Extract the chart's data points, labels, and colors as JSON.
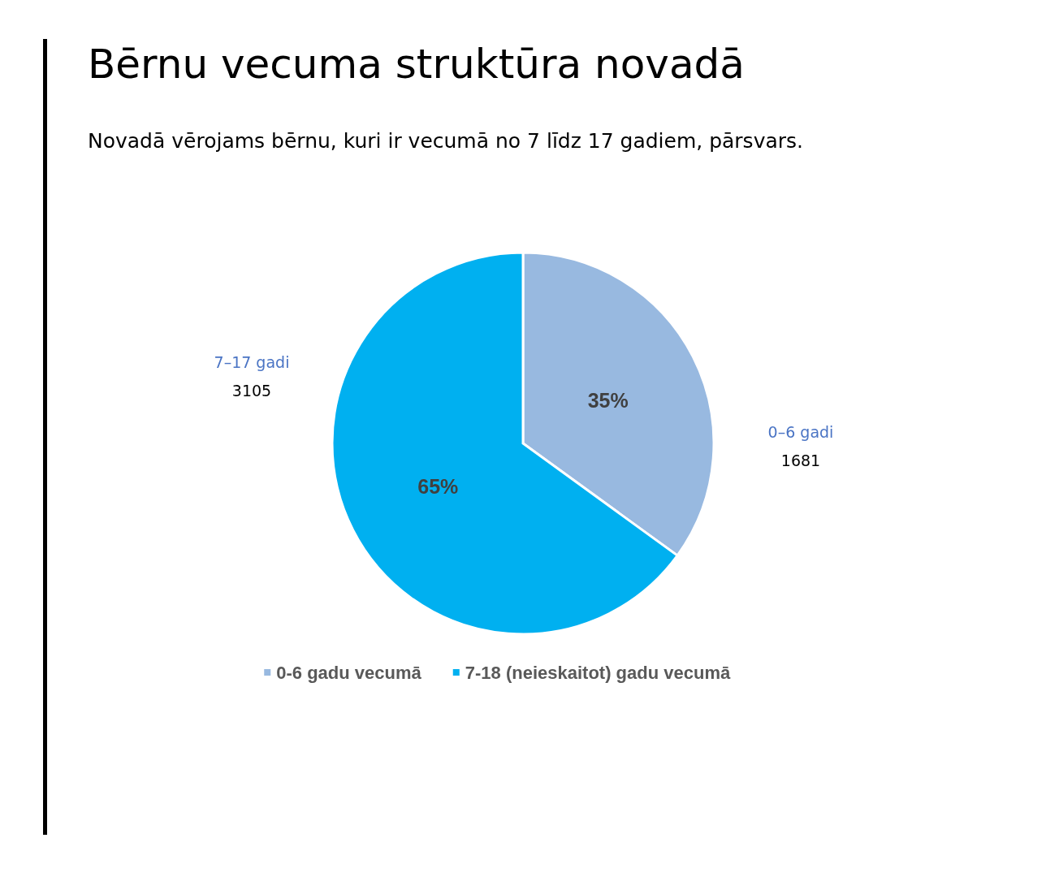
{
  "chart_data": {
    "type": "pie",
    "title": "Bērnu vecuma struktūra novadā",
    "subtitle": "Novadā vērojams bērnu, kuri ir vecumā no 7 līdz 17 gadiem, pārsvars.",
    "categories": [
      "0-6 gadu vecumā",
      "7-18 (neieskaitot) gadu vecumā"
    ],
    "values": [
      35,
      65
    ],
    "colors": [
      "#98b9e0",
      "#00b0f0"
    ],
    "value_labels": [
      "35%",
      "65%"
    ],
    "annotations": [
      "0–6 gadi",
      "1681",
      "7–17 gadi",
      "3105"
    ],
    "legend": "bottom"
  }
}
